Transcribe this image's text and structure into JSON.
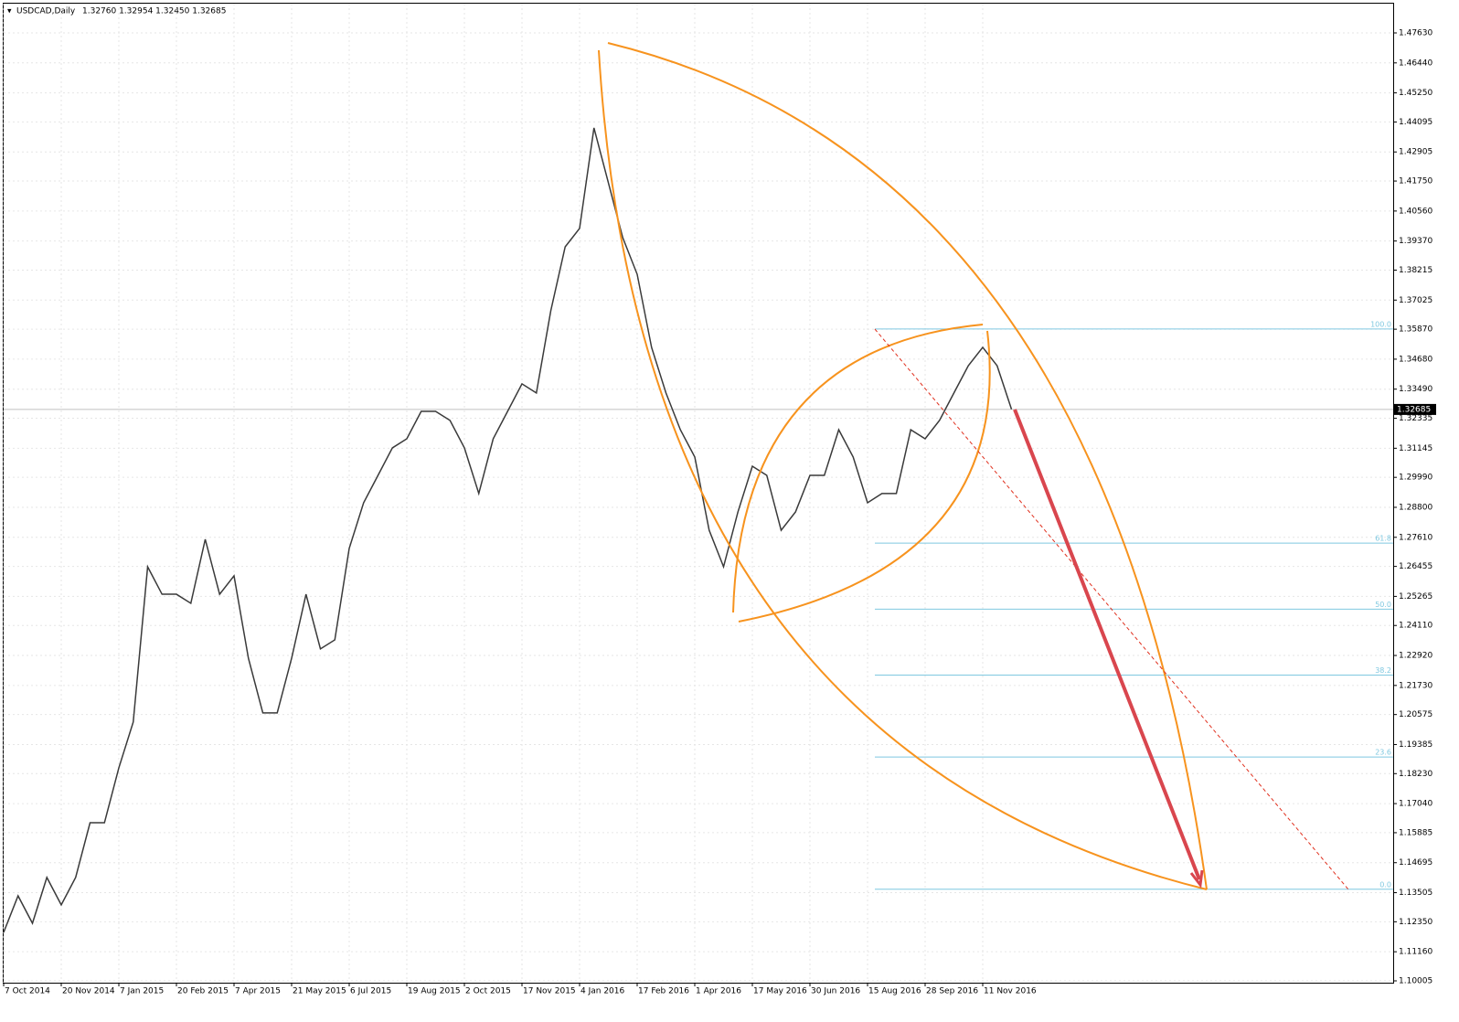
{
  "chart_data": {
    "type": "line",
    "title": "USDCAD,Daily",
    "subtitle": "1.32760 1.32954 1.32450 1.32685",
    "categories": [
      "7 Oct 2014",
      null,
      null,
      null,
      "20 Nov 2014",
      null,
      null,
      null,
      "7 Jan 2015",
      null,
      null,
      null,
      "20 Feb 2015",
      null,
      null,
      null,
      "7 Apr 2015",
      null,
      null,
      null,
      "21 May 2015",
      null,
      null,
      null,
      "6 Jul 2015",
      null,
      null,
      null,
      "19 Aug 2015",
      null,
      null,
      null,
      "2 Oct 2015",
      null,
      null,
      null,
      "17 Nov 2015",
      null,
      null,
      null,
      "4 Jan 2016",
      null,
      null,
      null,
      "17 Feb 2016",
      null,
      null,
      null,
      "1 Apr 2016",
      null,
      null,
      null,
      "17 May 2016",
      null,
      null,
      null,
      "30 Jun 2016",
      null,
      null,
      null,
      "15 Aug 2016",
      null,
      null,
      null,
      "28 Sep 2016",
      null,
      null,
      null,
      "11 Nov 2016",
      null,
      null
    ],
    "series": [
      {
        "name": "USDCAD",
        "color": "#3a3a3a",
        "values": [
          1.1193,
          1.1338,
          1.1229,
          1.1411,
          1.1302,
          1.1411,
          1.1628,
          1.1628,
          1.1846,
          1.2028,
          1.2644,
          1.2535,
          1.2535,
          1.2499,
          1.2753,
          1.2535,
          1.2608,
          1.2281,
          1.2064,
          1.2064,
          1.2281,
          1.2535,
          1.2318,
          1.2354,
          1.2717,
          1.2898,
          1.3007,
          1.3116,
          1.3152,
          1.3261,
          1.3261,
          1.3225,
          1.3116,
          1.2935,
          1.3152,
          1.3261,
          1.337,
          1.3334,
          1.366,
          1.3914,
          1.3987,
          1.4386,
          1.4168,
          1.395,
          1.3805,
          1.3515,
          1.3334,
          1.3188,
          1.308,
          1.2789,
          1.2644,
          1.2862,
          1.3043,
          1.3007,
          1.2789,
          1.2862,
          1.3007,
          1.3007,
          1.3188,
          1.308,
          1.2898,
          1.2935,
          1.2935,
          1.3188,
          1.3152,
          1.3225,
          1.3334,
          1.3442,
          1.3515,
          1.3442,
          1.3269
        ]
      }
    ],
    "ylim": [
      1.09932,
      1.48791
    ],
    "yticks": [
      {
        "value": 1.4763,
        "label": "1.47630"
      },
      {
        "value": 1.4644,
        "label": "1.46440"
      },
      {
        "value": 1.4525,
        "label": "1.45250"
      },
      1.44095,
      1.42905,
      {
        "value": 1.4175,
        "label": "1.41750"
      },
      {
        "value": 1.4056,
        "label": "1.40560"
      },
      {
        "value": 1.3937,
        "label": "1.39370"
      },
      1.38215,
      1.37025,
      {
        "value": 1.3587,
        "label": "1.35870"
      },
      {
        "value": 1.3468,
        "label": "1.34680"
      },
      {
        "value": 1.3349,
        "label": "1.33490"
      },
      1.32335,
      1.31145,
      {
        "value": 1.2999,
        "label": "1.29990"
      },
      {
        "value": 1.288,
        "label": "1.28800"
      },
      {
        "value": 1.2761,
        "label": "1.27610"
      },
      1.26455,
      1.25265,
      {
        "value": 1.2411,
        "label": "1.24110"
      },
      {
        "value": 1.2292,
        "label": "1.22920"
      },
      {
        "value": 1.2173,
        "label": "1.21730"
      },
      1.20575,
      1.19385,
      {
        "value": 1.1823,
        "label": "1.18230"
      },
      {
        "value": 1.1704,
        "label": "1.17040"
      },
      1.15885,
      1.14695,
      1.13505,
      {
        "value": 1.1235,
        "label": "1.12350"
      },
      {
        "value": 1.1116,
        "label": "1.11160"
      },
      1.10005
    ],
    "current_price": 1.32685,
    "grid": true,
    "fibonacci": [
      {
        "label": "100.0",
        "value": 1.3588
      },
      {
        "label": "61.8",
        "value": 1.2738
      },
      {
        "label": "50.0",
        "value": 1.2476
      },
      {
        "label": "38.2",
        "value": 1.2214
      },
      {
        "label": "23.6",
        "value": 1.1889
      },
      {
        "label": "0.0",
        "value": 1.1364
      }
    ]
  }
}
